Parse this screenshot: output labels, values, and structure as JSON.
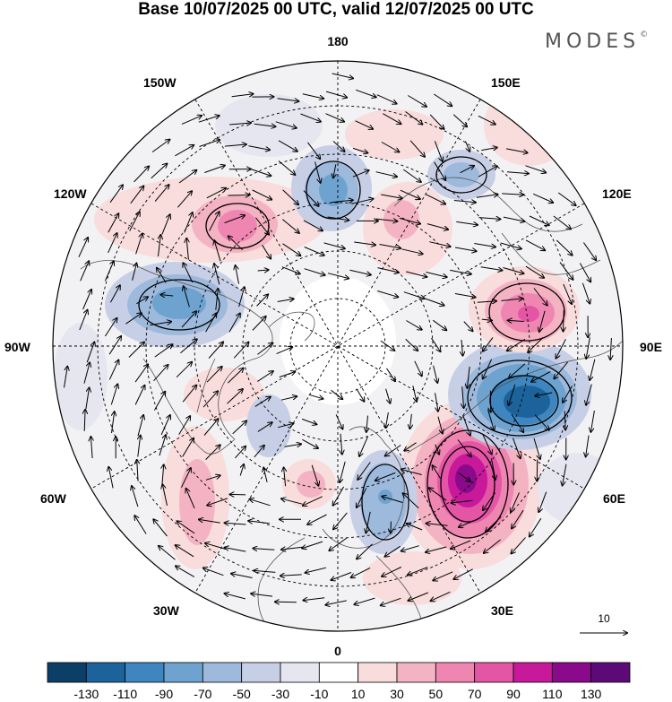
{
  "title": "Base 10/07/2025 00 UTC, valid 12/07/2025 00 UTC",
  "brand": "MODES",
  "brand_mark": "©",
  "longitude_labels": {
    "lon180": "180",
    "lon150w": "150W",
    "lon150e": "150E",
    "lon120w": "120W",
    "lon120e": "120E",
    "lon90w": "90W",
    "lon90e": "90E",
    "lon60w": "60W",
    "lon60e": "60E",
    "lon30w": "30W",
    "lon30e": "30E",
    "lon0": "0"
  },
  "reference_vector": {
    "label": "10"
  },
  "colorbar": {
    "labels": [
      "-130",
      "-110",
      "-90",
      "-70",
      "-50",
      "-30",
      "-10",
      "10",
      "30",
      "50",
      "70",
      "90",
      "110",
      "130"
    ],
    "colors": [
      "#0b3f66",
      "#1b639a",
      "#3f86c0",
      "#6ea3d0",
      "#9db9dc",
      "#c7cfe6",
      "#e6e6f1",
      "#ffffff",
      "#f9dcdc",
      "#f4b3c3",
      "#ee86b1",
      "#e455a5",
      "#c8199b",
      "#8b0a8b",
      "#5c0a78"
    ]
  },
  "anomaly_centers": [
    {
      "lon_label": "75E",
      "sign": "positive",
      "level": 70
    },
    {
      "lon_label": "45E",
      "sign": "positive",
      "level": 110
    },
    {
      "lon_label": "60E",
      "sign": "negative",
      "level": -110
    },
    {
      "lon_label": "15E",
      "sign": "negative",
      "level": -50
    },
    {
      "lon_label": "165E",
      "sign": "negative",
      "level": -50
    },
    {
      "lon_label": "150E",
      "sign": "negative",
      "level": -30
    },
    {
      "lon_label": "105W",
      "sign": "negative",
      "level": -50
    },
    {
      "lon_label": "120W",
      "sign": "positive",
      "level": 50
    },
    {
      "lon_label": "150E",
      "sign": "positive",
      "level": 30
    }
  ]
}
